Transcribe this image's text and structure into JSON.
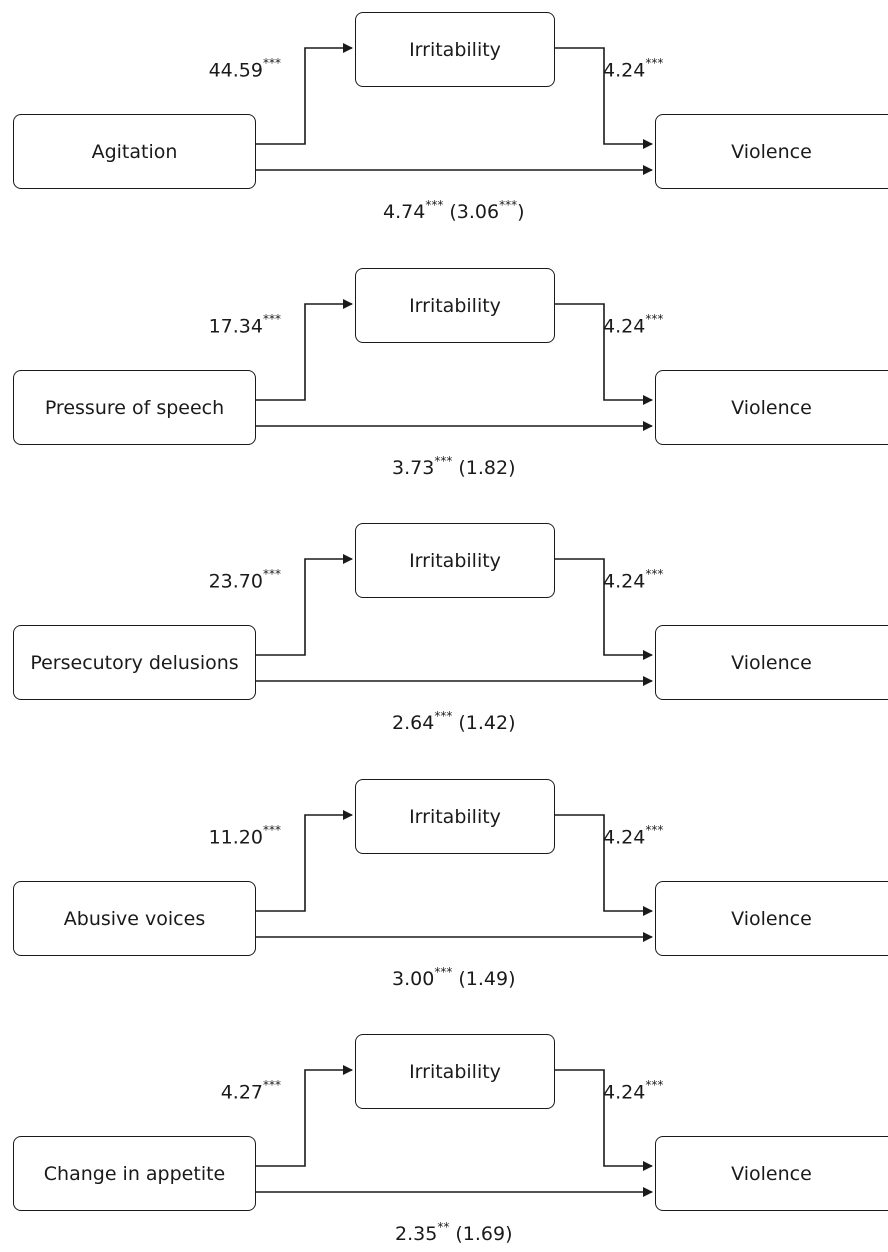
{
  "diagrams": [
    {
      "predictor": "Agitation",
      "mediator": "Irritability",
      "outcome": "Violence",
      "a_value": "44.59",
      "a_sig": "***",
      "b_value": "4.24",
      "b_sig": "***",
      "c_value": "4.74",
      "c_sig": "***",
      "c_prime_open": " (",
      "c_prime_value": "3.06",
      "c_prime_sig": "***",
      "c_prime_close": ")"
    },
    {
      "predictor": "Pressure of speech",
      "mediator": "Irritability",
      "outcome": "Violence",
      "a_value": "17.34",
      "a_sig": "***",
      "b_value": "4.24",
      "b_sig": "***",
      "c_value": "3.73",
      "c_sig": "***",
      "c_prime_open": " (",
      "c_prime_value": "1.82",
      "c_prime_sig": "",
      "c_prime_close": ")"
    },
    {
      "predictor": "Persecutory delusions",
      "mediator": "Irritability",
      "outcome": "Violence",
      "a_value": "23.70",
      "a_sig": "***",
      "b_value": "4.24",
      "b_sig": "***",
      "c_value": "2.64",
      "c_sig": "***",
      "c_prime_open": " (",
      "c_prime_value": "1.42",
      "c_prime_sig": "",
      "c_prime_close": ")"
    },
    {
      "predictor": "Abusive voices",
      "mediator": "Irritability",
      "outcome": "Violence",
      "a_value": "11.20",
      "a_sig": "***",
      "b_value": "4.24",
      "b_sig": "***",
      "c_value": "3.00",
      "c_sig": "***",
      "c_prime_open": " (",
      "c_prime_value": "1.49",
      "c_prime_sig": "",
      "c_prime_close": ")"
    },
    {
      "predictor": "Change in appetite",
      "mediator": "Irritability",
      "outcome": "Violence",
      "a_value": "4.27",
      "a_sig": "***",
      "b_value": "4.24",
      "b_sig": "***",
      "c_value": "2.35",
      "c_sig": "**",
      "c_prime_open": " (",
      "c_prime_value": "1.69",
      "c_prime_sig": "",
      "c_prime_close": ")"
    }
  ]
}
